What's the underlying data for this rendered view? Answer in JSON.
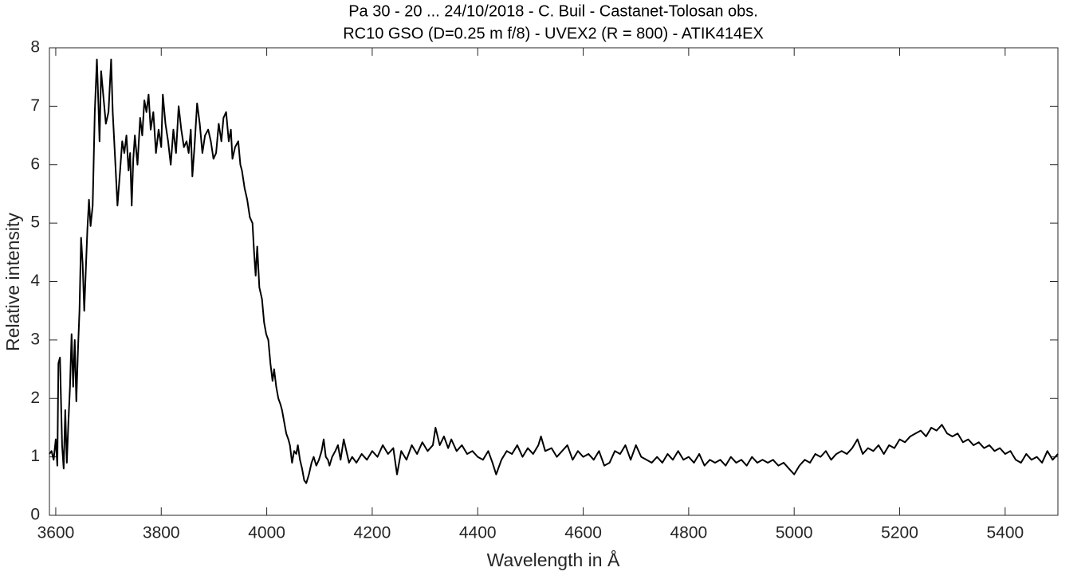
{
  "chart_data": {
    "type": "line",
    "title": "Pa 30 - 20 ... 24/10/2018 - C. Buil - Castanet-Tolosan obs.",
    "subtitle": "RC10 GSO (D=0.25 m f/8) - UVEX2 (R = 800) - ATIK414EX",
    "x_label": "Wavelength in Å",
    "y_label": "Relative intensity",
    "xlim": [
      3588,
      5500
    ],
    "ylim": [
      0,
      8
    ],
    "xticks": [
      3600,
      3800,
      4000,
      4200,
      4400,
      4600,
      4800,
      5000,
      5200,
      5400
    ],
    "yticks": [
      0,
      1,
      2,
      3,
      4,
      5,
      6,
      7,
      8
    ],
    "grid": false,
    "series": [
      {
        "color": "#000000",
        "x": [
          3588,
          3592,
          3596,
          3600,
          3603,
          3605,
          3608,
          3612,
          3615,
          3618,
          3621,
          3624,
          3627,
          3630,
          3633,
          3636,
          3639,
          3642,
          3645,
          3648,
          3651,
          3654,
          3657,
          3660,
          3663,
          3666,
          3670,
          3674,
          3678,
          3681,
          3683,
          3686,
          3690,
          3695,
          3700,
          3705,
          3708,
          3712,
          3717,
          3722,
          3726,
          3730,
          3734,
          3738,
          3741,
          3744,
          3747,
          3750,
          3755,
          3760,
          3764,
          3768,
          3772,
          3776,
          3780,
          3785,
          3790,
          3795,
          3800,
          3803,
          3808,
          3813,
          3818,
          3823,
          3828,
          3833,
          3838,
          3843,
          3848,
          3852,
          3856,
          3859,
          3863,
          3868,
          3873,
          3878,
          3883,
          3889,
          3894,
          3899,
          3904,
          3909,
          3914,
          3918,
          3923,
          3928,
          3932,
          3935,
          3940,
          3946,
          3950,
          3953,
          3958,
          3963,
          3968,
          3973,
          3976,
          3979,
          3982,
          3986,
          3991,
          3995,
          3999,
          4003,
          4007,
          4011,
          4014,
          4018,
          4022,
          4026,
          4029,
          4033,
          4037,
          4041,
          4044,
          4048,
          4052,
          4056,
          4059,
          4063,
          4067,
          4071,
          4075,
          4080,
          4085,
          4089,
          4094,
          4099,
          4104,
          4108,
          4112,
          4116,
          4119,
          4124,
          4130,
          4135,
          4140,
          4146,
          4151,
          4156,
          4162,
          4170,
          4180,
          4190,
          4200,
          4210,
          4220,
          4230,
          4240,
          4247,
          4255,
          4265,
          4275,
          4285,
          4295,
          4305,
          4315,
          4320,
          4328,
          4336,
          4344,
          4350,
          4360,
          4370,
          4380,
          4390,
          4400,
          4410,
          4420,
          4428,
          4435,
          4445,
          4455,
          4465,
          4475,
          4485,
          4495,
          4505,
          4515,
          4520,
          4528,
          4540,
          4550,
          4560,
          4570,
          4580,
          4590,
          4600,
          4610,
          4620,
          4630,
          4640,
          4650,
          4660,
          4670,
          4680,
          4690,
          4700,
          4710,
          4720,
          4730,
          4740,
          4750,
          4760,
          4770,
          4780,
          4790,
          4800,
          4810,
          4820,
          4830,
          4840,
          4850,
          4860,
          4870,
          4880,
          4890,
          4900,
          4910,
          4920,
          4930,
          4940,
          4950,
          4960,
          4970,
          4980,
          4990,
          5000,
          5010,
          5020,
          5030,
          5040,
          5050,
          5060,
          5070,
          5080,
          5090,
          5100,
          5110,
          5120,
          5130,
          5140,
          5150,
          5160,
          5170,
          5180,
          5190,
          5200,
          5210,
          5220,
          5230,
          5240,
          5250,
          5260,
          5270,
          5280,
          5290,
          5300,
          5310,
          5320,
          5330,
          5340,
          5350,
          5360,
          5370,
          5380,
          5390,
          5400,
          5410,
          5420,
          5430,
          5440,
          5450,
          5460,
          5470,
          5480,
          5490,
          5500
        ],
        "values": [
          1.05,
          1.1,
          0.95,
          1.3,
          0.85,
          2.6,
          2.7,
          1.2,
          0.8,
          1.8,
          0.9,
          1.6,
          2.2,
          3.1,
          2.2,
          3.0,
          1.95,
          2.8,
          3.5,
          4.75,
          4.3,
          3.5,
          4.2,
          4.9,
          5.4,
          4.95,
          5.3,
          6.9,
          7.8,
          7.0,
          6.4,
          7.6,
          7.2,
          6.7,
          6.9,
          7.8,
          6.9,
          6.2,
          5.3,
          5.9,
          6.4,
          6.2,
          6.5,
          5.9,
          6.2,
          5.3,
          6.1,
          6.5,
          6.0,
          6.8,
          6.5,
          7.1,
          6.9,
          7.2,
          6.6,
          6.9,
          6.2,
          6.6,
          6.3,
          7.2,
          6.7,
          6.4,
          6.0,
          6.6,
          6.2,
          7.0,
          6.6,
          6.3,
          6.4,
          6.2,
          6.6,
          5.8,
          6.3,
          7.05,
          6.7,
          6.2,
          6.5,
          6.6,
          6.4,
          6.1,
          6.2,
          6.7,
          6.4,
          6.8,
          6.9,
          6.4,
          6.6,
          6.1,
          6.3,
          6.4,
          6.0,
          5.9,
          5.6,
          5.4,
          5.1,
          5.0,
          4.5,
          4.1,
          4.6,
          3.9,
          3.7,
          3.3,
          3.1,
          3.0,
          2.6,
          2.3,
          2.5,
          2.2,
          2.0,
          1.9,
          1.8,
          1.6,
          1.4,
          1.3,
          1.2,
          0.9,
          1.1,
          1.05,
          1.2,
          0.95,
          0.8,
          0.6,
          0.55,
          0.7,
          0.9,
          1.0,
          0.85,
          0.95,
          1.1,
          1.3,
          1.0,
          0.95,
          0.85,
          1.0,
          1.1,
          1.2,
          0.95,
          1.3,
          1.1,
          0.9,
          1.0,
          0.9,
          1.05,
          0.95,
          1.1,
          1.0,
          1.2,
          1.05,
          1.15,
          0.7,
          1.1,
          0.95,
          1.2,
          1.05,
          1.25,
          1.1,
          1.2,
          1.5,
          1.2,
          1.35,
          1.15,
          1.3,
          1.1,
          1.2,
          1.05,
          1.1,
          1.0,
          0.95,
          1.1,
          0.9,
          0.7,
          0.95,
          1.1,
          1.05,
          1.2,
          1.0,
          1.15,
          1.05,
          1.2,
          1.35,
          1.1,
          1.15,
          1.0,
          1.1,
          1.2,
          0.95,
          1.1,
          1.0,
          1.05,
          0.95,
          1.1,
          0.85,
          0.9,
          1.1,
          1.05,
          1.2,
          0.95,
          1.2,
          1.0,
          0.95,
          0.9,
          1.0,
          0.9,
          1.05,
          0.95,
          1.1,
          0.95,
          1.0,
          0.9,
          1.05,
          0.85,
          0.95,
          0.9,
          0.95,
          0.85,
          1.0,
          0.9,
          0.95,
          0.85,
          1.0,
          0.9,
          0.95,
          0.9,
          0.95,
          0.85,
          0.9,
          0.8,
          0.7,
          0.85,
          0.95,
          0.9,
          1.05,
          1.0,
          1.1,
          0.95,
          1.05,
          1.1,
          1.05,
          1.15,
          1.3,
          1.05,
          1.15,
          1.1,
          1.2,
          1.05,
          1.2,
          1.15,
          1.3,
          1.25,
          1.35,
          1.4,
          1.45,
          1.35,
          1.5,
          1.45,
          1.55,
          1.4,
          1.35,
          1.4,
          1.25,
          1.3,
          1.2,
          1.25,
          1.15,
          1.2,
          1.1,
          1.15,
          1.05,
          1.1,
          0.95,
          0.9,
          1.05,
          0.95,
          1.0,
          0.9,
          1.1,
          0.95,
          1.05
        ]
      }
    ]
  }
}
